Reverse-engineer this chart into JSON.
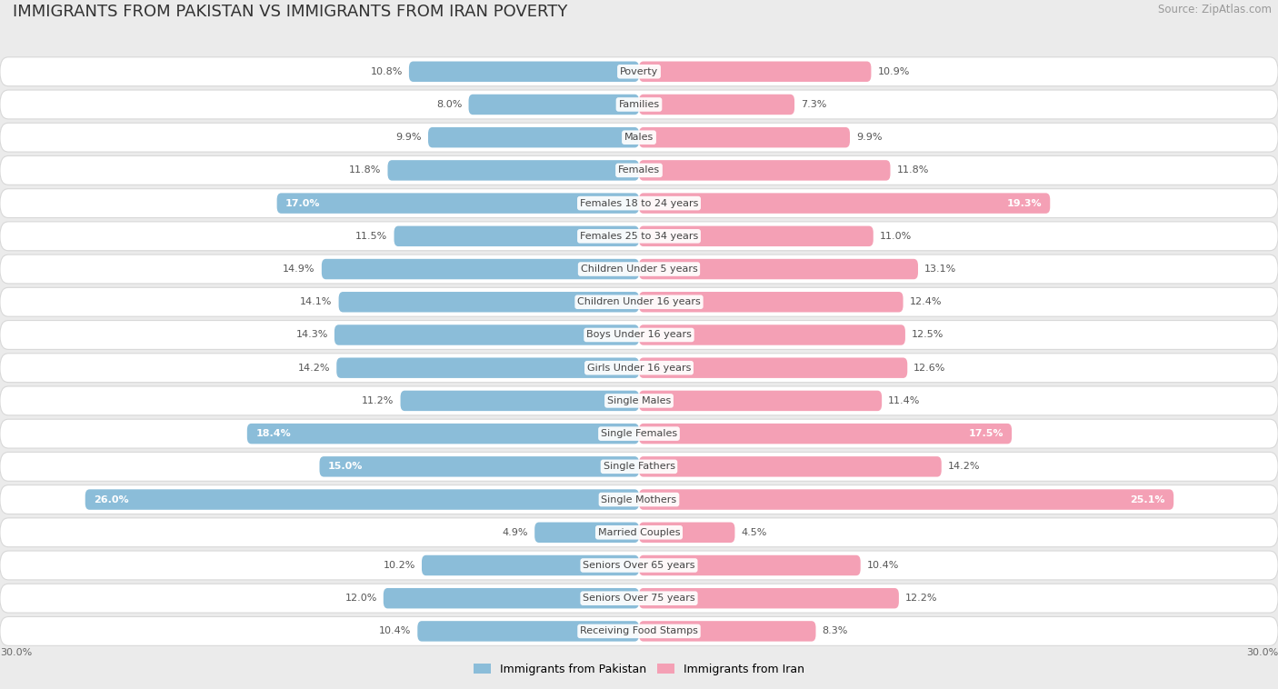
{
  "title": "IMMIGRANTS FROM PAKISTAN VS IMMIGRANTS FROM IRAN POVERTY",
  "source": "Source: ZipAtlas.com",
  "categories": [
    "Poverty",
    "Families",
    "Males",
    "Females",
    "Females 18 to 24 years",
    "Females 25 to 34 years",
    "Children Under 5 years",
    "Children Under 16 years",
    "Boys Under 16 years",
    "Girls Under 16 years",
    "Single Males",
    "Single Females",
    "Single Fathers",
    "Single Mothers",
    "Married Couples",
    "Seniors Over 65 years",
    "Seniors Over 75 years",
    "Receiving Food Stamps"
  ],
  "pakistan_values": [
    10.8,
    8.0,
    9.9,
    11.8,
    17.0,
    11.5,
    14.9,
    14.1,
    14.3,
    14.2,
    11.2,
    18.4,
    15.0,
    26.0,
    4.9,
    10.2,
    12.0,
    10.4
  ],
  "iran_values": [
    10.9,
    7.3,
    9.9,
    11.8,
    19.3,
    11.0,
    13.1,
    12.4,
    12.5,
    12.6,
    11.4,
    17.5,
    14.2,
    25.1,
    4.5,
    10.4,
    12.2,
    8.3
  ],
  "pakistan_color": "#8bbdd9",
  "iran_color": "#f4a0b5",
  "pakistan_label": "Immigrants from Pakistan",
  "iran_label": "Immigrants from Iran",
  "axis_limit": 30.0,
  "background_color": "#ebebeb",
  "bar_bg_color": "#ffffff",
  "highlight_threshold": 15.0,
  "title_fontsize": 13,
  "source_fontsize": 8.5,
  "value_fontsize": 8,
  "category_fontsize": 8
}
